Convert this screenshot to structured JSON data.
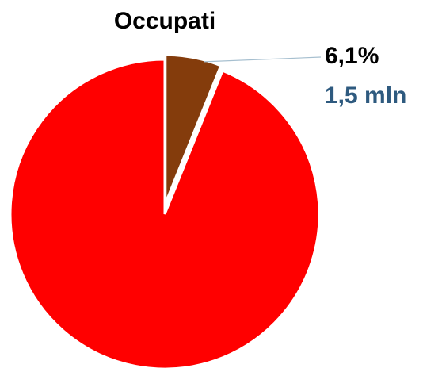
{
  "chart_data": {
    "type": "pie",
    "title": "Occupati",
    "categories": [
      null,
      null
    ],
    "values": [
      6.1,
      93.9
    ],
    "value_labels": [
      "6,1%",
      null
    ],
    "sub_labels": [
      "1,5 mln",
      null
    ],
    "colors": [
      "#843c0c",
      "#ff0000"
    ],
    "exploded": [
      true,
      false
    ],
    "start_angle": 0,
    "direction": "clockwise"
  }
}
